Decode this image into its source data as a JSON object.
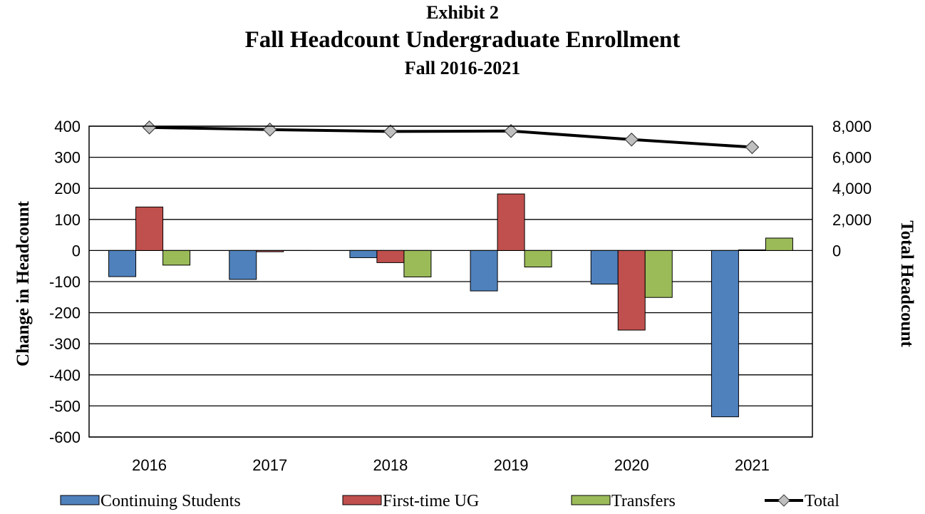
{
  "chart_data": {
    "type": "bar",
    "pre_title": "Exhibit 2",
    "title": "Fall Headcount Undergraduate Enrollment",
    "subtitle": "Fall 2016-2021",
    "categories": [
      "2016",
      "2017",
      "2018",
      "2019",
      "2020",
      "2021"
    ],
    "ylabel": "Change in Headcount",
    "y2label": "Total Headcount",
    "ylim": [
      -600,
      400
    ],
    "yticks": [
      "400",
      "300",
      "200",
      "100",
      "0",
      "-100",
      "-200",
      "-300",
      "-400",
      "-500",
      "-600"
    ],
    "y2lim": [
      0,
      8000
    ],
    "y2ticks": [
      "8,000",
      "6,000",
      "4,000",
      "2,000",
      "0"
    ],
    "grid": true,
    "legend_position": "bottom",
    "series": [
      {
        "name": "Continuing Students",
        "type": "bar",
        "axis": "left",
        "color": "#4F81BD",
        "values": [
          -84,
          -93,
          -23,
          -130,
          -108,
          -535
        ]
      },
      {
        "name": "First-time UG",
        "type": "bar",
        "axis": "left",
        "color": "#C0504D",
        "values": [
          140,
          -4,
          -39,
          182,
          -256,
          2
        ]
      },
      {
        "name": "Transfers",
        "type": "bar",
        "axis": "left",
        "color": "#9BBB59",
        "values": [
          -47,
          0,
          -85,
          -53,
          -151,
          40
        ]
      },
      {
        "name": "Total",
        "type": "line",
        "axis": "right",
        "color": "#000000",
        "marker_color": "#BFBFBF",
        "values": [
          7920,
          7780,
          7660,
          7690,
          7140,
          6650
        ]
      }
    ]
  }
}
